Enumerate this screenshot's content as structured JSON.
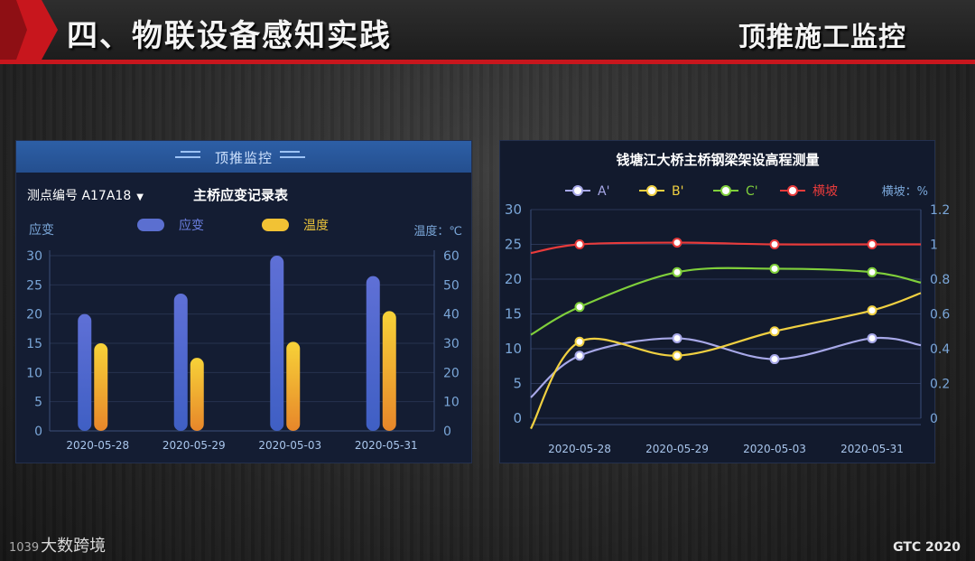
{
  "slide": {
    "title": "四、物联设备感知实践",
    "subtitle": "顶推施工监控",
    "watermark": "大数跨境",
    "watermark_logo": "1039",
    "footer": "GTC 2020"
  },
  "left_panel": {
    "header_title": "顶推监控",
    "dropdown_label": "测点编号 A17A18",
    "chart_title": "主桥应变记录表"
  },
  "right_panel": {
    "chart_title": "钱塘江大桥主桥钢梁架设高程测量"
  },
  "colors": {
    "strain_bar": "#5b6fd0",
    "temp_bar": "#f2c234",
    "series_a": "#a7a8e8",
    "series_b": "#f0d041",
    "series_c": "#7fcf3b",
    "series_slope": "#e83b3b"
  },
  "chart_data": [
    {
      "type": "bar",
      "title": "主桥应变记录表",
      "categories": [
        "2020-05-28",
        "2020-05-29",
        "2020-05-03",
        "2020-05-31"
      ],
      "series": [
        {
          "name": "应变",
          "axis": "left",
          "values": [
            20,
            23.5,
            30,
            26.5
          ]
        },
        {
          "name": "温度",
          "axis": "right",
          "values": [
            30,
            25,
            30.5,
            41
          ]
        }
      ],
      "ylabel_left": "应变",
      "ylabel_right": "温度：℃",
      "ylim_left": [
        0,
        30
      ],
      "ylim_right": [
        0,
        60
      ],
      "yticks_left": [
        "0",
        "5",
        "10",
        "15",
        "20",
        "25",
        "30"
      ],
      "yticks_right": [
        "0",
        "10",
        "20",
        "30",
        "40",
        "50",
        "60"
      ],
      "legend_position": "top-center"
    },
    {
      "type": "line",
      "title": "钱塘江大桥主桥钢梁架设高程测量",
      "categories": [
        "2020-05-28",
        "2020-05-29",
        "2020-05-03",
        "2020-05-31"
      ],
      "series": [
        {
          "name": "A'",
          "axis": "left",
          "values": [
            9,
            11.5,
            8.5,
            11.5
          ],
          "start": 3,
          "end": 10.5
        },
        {
          "name": "B'",
          "axis": "left",
          "values": [
            11,
            9,
            12.5,
            15.5
          ],
          "start": -1.5,
          "end": 18
        },
        {
          "name": "C'",
          "axis": "left",
          "values": [
            16,
            21,
            21.5,
            21
          ],
          "start": 12,
          "end": 19.5
        },
        {
          "name": "横坡",
          "axis": "right",
          "values": [
            1.0,
            1.01,
            1.0,
            1.0
          ],
          "start": 0.95,
          "end": 1.0
        }
      ],
      "ylabel_right": "横坡：%",
      "ylim_left": [
        0,
        30
      ],
      "ylim_right": [
        0,
        1.2
      ],
      "yticks_left": [
        "0",
        "5",
        "10",
        "15",
        "20",
        "25",
        "30"
      ],
      "yticks_right": [
        "0",
        "0.2",
        "0.4",
        "0.6",
        "0.8",
        "1",
        "1.2"
      ],
      "legend_position": "top-center"
    }
  ]
}
